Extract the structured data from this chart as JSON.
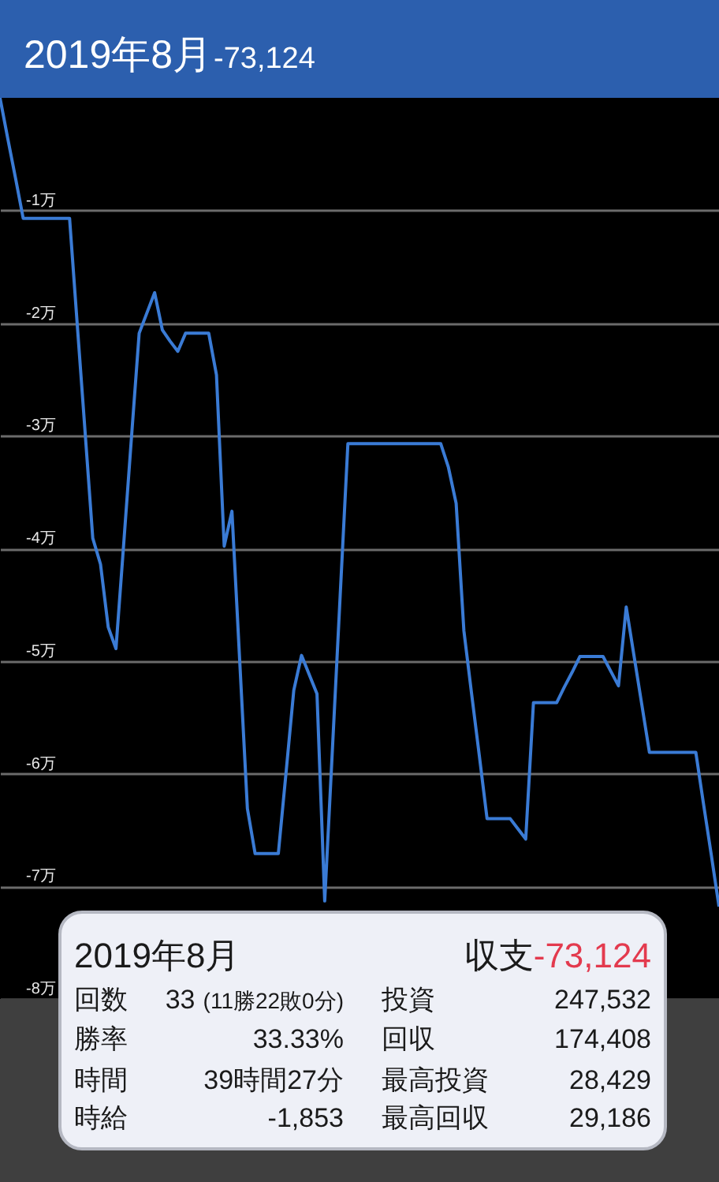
{
  "chart_data": {
    "type": "line",
    "title": "2019年8月",
    "subtitle": "-73,124",
    "categories": [
      null,
      null,
      null,
      null,
      null,
      null,
      null,
      null,
      null,
      null,
      null,
      null,
      null,
      null,
      null,
      null,
      null,
      null,
      null,
      null,
      null,
      null,
      null,
      null,
      null,
      null,
      null,
      null,
      null,
      null,
      null,
      null,
      null,
      null,
      null,
      null,
      null,
      null,
      null,
      null,
      null,
      null,
      null,
      null,
      null,
      null,
      null,
      null,
      null,
      null,
      null,
      null,
      null,
      null,
      null,
      null,
      null,
      null,
      null,
      null,
      null,
      null,
      null,
      null,
      null,
      null,
      null,
      null,
      null,
      null,
      null,
      null,
      null,
      null,
      null,
      null,
      null,
      null,
      null,
      null,
      null,
      null,
      null,
      null,
      null,
      null,
      null,
      null,
      null,
      null,
      null,
      null,
      null,
      null
    ],
    "series": [
      {
        "color": "#3a7bd5",
        "values": [
          0,
          -0.36,
          -0.71,
          -1.07,
          -1.07,
          -1.07,
          -1.07,
          -1.07,
          -1.07,
          -1.07,
          -2.02,
          -2.96,
          -3.91,
          -4.14,
          -4.7,
          -4.89,
          -3.96,
          -3.02,
          -2.09,
          -1.91,
          -1.73,
          -2.06,
          -2.16,
          -2.25,
          -2.09,
          -2.09,
          -2.09,
          -2.09,
          -2.46,
          -3.98,
          -3.67,
          -4.99,
          -6.31,
          -6.71,
          -6.71,
          -6.71,
          -6.71,
          -5.99,
          -5.26,
          -4.95,
          -5.12,
          -5.29,
          -7.13,
          -5.78,
          -4.42,
          -3.07,
          -3.07,
          -3.07,
          -3.07,
          -3.07,
          -3.07,
          -3.07,
          -3.07,
          -3.07,
          -3.07,
          -3.07,
          -3.07,
          -3.07,
          -3.28,
          -3.6,
          -4.73,
          -5.29,
          -5.84,
          -6.4,
          -6.4,
          -6.4,
          -6.4,
          -6.49,
          -6.58,
          -5.37,
          -5.37,
          -5.37,
          -5.37,
          -5.23,
          -5.1,
          -4.96,
          -4.96,
          -4.96,
          -4.96,
          -5.09,
          -5.22,
          -4.52,
          -4.95,
          -5.38,
          -5.81,
          -5.81,
          -5.81,
          -5.81,
          -5.81,
          -5.81,
          -5.81,
          -6.27,
          -6.72,
          -7.18
        ]
      }
    ],
    "ylim": [
      -8,
      0
    ],
    "yticks": [
      {
        "value": -1,
        "label": "-1万"
      },
      {
        "value": -2,
        "label": "-2万"
      },
      {
        "value": -3,
        "label": "-3万"
      },
      {
        "value": -4,
        "label": "-4万"
      },
      {
        "value": -5,
        "label": "-5万"
      },
      {
        "value": -6,
        "label": "-6万"
      },
      {
        "value": -7,
        "label": "-7万"
      },
      {
        "value": -8,
        "label": "-8万"
      }
    ],
    "grid": "y",
    "tick_labels": "y",
    "annotations": [
      "2019年8月",
      "収支",
      "-73,124",
      "回数",
      "33",
      "(11勝22敗0分)",
      "投資",
      "247,532",
      "勝率",
      "33.33%",
      "回収",
      "174,408",
      "時間",
      "39時間27分",
      "最高投資",
      "28,429",
      "時給",
      "-1,853",
      "最高回収",
      "29,186"
    ]
  }
}
